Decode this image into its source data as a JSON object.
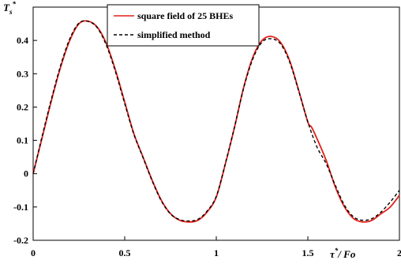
{
  "chart_data": {
    "type": "line",
    "ylabel_main": "T",
    "ylabel_sub": "s",
    "ylabel_sup": "*",
    "xlabel_main": "τ",
    "xlabel_sup": "*",
    "xlabel_rest": "/ Fo",
    "xlim": [
      0,
      2
    ],
    "ylim": [
      -0.2,
      0.5
    ],
    "x_ticks": [
      "0",
      "0.5",
      "1",
      "1.5",
      "2"
    ],
    "x_tick_values": [
      0,
      0.5,
      1,
      1.5,
      2
    ],
    "y_ticks": [
      "-0.2",
      "-0.1",
      "0",
      "0.1",
      "0.2",
      "0.3",
      "0.4"
    ],
    "y_tick_values": [
      -0.2,
      -0.1,
      0,
      0.1,
      0.2,
      0.3,
      0.4
    ],
    "grid": false,
    "legend_position": "top-left",
    "series": [
      {
        "name": "square field of 25 BHEs",
        "color": "#e0201b",
        "style": "solid",
        "x": [
          0,
          0.05,
          0.1,
          0.15,
          0.2,
          0.25,
          0.3,
          0.35,
          0.4,
          0.45,
          0.5,
          0.55,
          0.6,
          0.65,
          0.7,
          0.75,
          0.8,
          0.85,
          0.9,
          0.95,
          1.0,
          1.05,
          1.1,
          1.15,
          1.2,
          1.25,
          1.3,
          1.35,
          1.4,
          1.45,
          1.5,
          1.52,
          1.55,
          1.6,
          1.65,
          1.7,
          1.75,
          1.8,
          1.85,
          1.9,
          1.95,
          2.0
        ],
        "y": [
          0,
          0.11,
          0.22,
          0.32,
          0.4,
          0.45,
          0.458,
          0.44,
          0.39,
          0.31,
          0.215,
          0.12,
          0.05,
          -0.02,
          -0.08,
          -0.12,
          -0.14,
          -0.145,
          -0.14,
          -0.115,
          -0.07,
          0.03,
          0.14,
          0.26,
          0.35,
          0.4,
          0.412,
          0.395,
          0.34,
          0.25,
          0.155,
          0.14,
          0.105,
          0.04,
          -0.04,
          -0.1,
          -0.135,
          -0.145,
          -0.14,
          -0.12,
          -0.1,
          -0.065
        ]
      },
      {
        "name": "simplified method",
        "color": "#000000",
        "style": "dashed",
        "x": [
          0,
          0.05,
          0.1,
          0.15,
          0.2,
          0.25,
          0.3,
          0.35,
          0.4,
          0.45,
          0.5,
          0.55,
          0.6,
          0.65,
          0.7,
          0.75,
          0.8,
          0.85,
          0.9,
          0.95,
          1.0,
          1.05,
          1.1,
          1.15,
          1.2,
          1.25,
          1.3,
          1.35,
          1.4,
          1.45,
          1.5,
          1.55,
          1.6,
          1.65,
          1.7,
          1.75,
          1.8,
          1.85,
          1.9,
          1.95,
          2.0
        ],
        "y": [
          0,
          0.115,
          0.225,
          0.325,
          0.405,
          0.452,
          0.457,
          0.438,
          0.385,
          0.305,
          0.21,
          0.118,
          0.048,
          -0.022,
          -0.082,
          -0.121,
          -0.138,
          -0.142,
          -0.137,
          -0.112,
          -0.068,
          0.032,
          0.142,
          0.258,
          0.345,
          0.395,
          0.405,
          0.39,
          0.336,
          0.248,
          0.155,
          0.08,
          0.03,
          -0.035,
          -0.095,
          -0.13,
          -0.14,
          -0.135,
          -0.115,
          -0.085,
          -0.05
        ]
      }
    ]
  }
}
